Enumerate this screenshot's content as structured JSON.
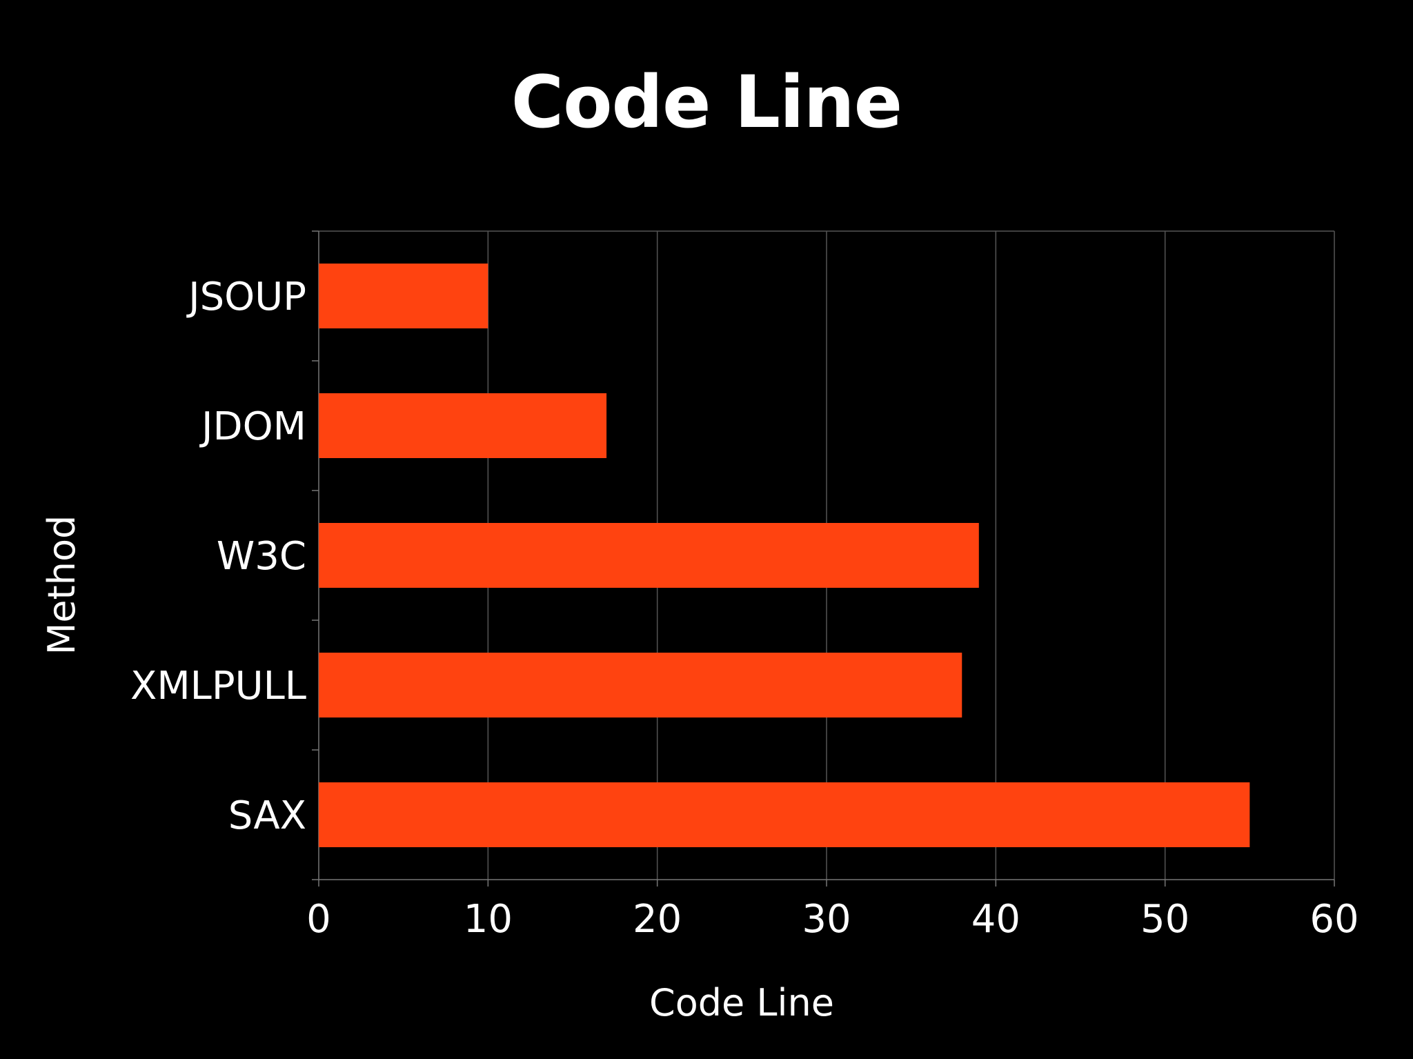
{
  "chart_data": {
    "type": "bar",
    "orientation": "horizontal",
    "title": "Code Line",
    "xlabel": "Code Line",
    "ylabel": "Method",
    "categories": [
      "JSOUP",
      "JDOM",
      "W3C",
      "XMLPULL",
      "SAX"
    ],
    "values": [
      10,
      17,
      39,
      38,
      55
    ],
    "xlim": [
      0,
      60
    ],
    "xticks": [
      "0",
      "10",
      "20",
      "30",
      "40",
      "50",
      "60"
    ],
    "grid": "vertical",
    "legend": "none",
    "colors": {
      "background": "#000000",
      "bar": "#FF4310",
      "text": "#FFFFFF",
      "grid": "#555555",
      "axis": "#777777"
    }
  }
}
